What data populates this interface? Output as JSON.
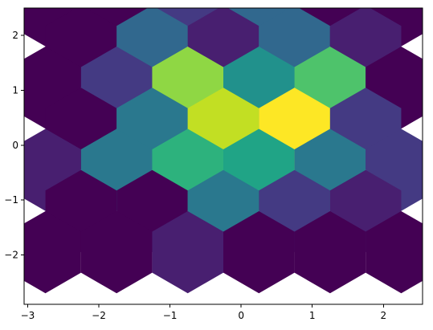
{
  "chart_data": {
    "type": "heatmap",
    "subtype": "hexbin",
    "title": "",
    "xlabel": "",
    "ylabel": "",
    "xlim": [
      -3.05,
      2.55
    ],
    "ylim": [
      -2.9,
      2.5
    ],
    "grid": false,
    "legend": "none",
    "colormap": "viridis",
    "hex_size_y_units": 0.7,
    "x_ticks": [
      {
        "value": -3,
        "label": "−3"
      },
      {
        "value": -2,
        "label": "−2"
      },
      {
        "value": -1,
        "label": "−1"
      },
      {
        "value": 0,
        "label": "0"
      },
      {
        "value": 1,
        "label": "1"
      },
      {
        "value": 2,
        "label": "2"
      }
    ],
    "y_ticks": [
      {
        "value": -2,
        "label": "−2"
      },
      {
        "value": -1,
        "label": "−1"
      },
      {
        "value": 0,
        "label": "0"
      },
      {
        "value": 1,
        "label": "1"
      },
      {
        "value": 2,
        "label": "2"
      }
    ],
    "cells": [
      {
        "x": -2.75,
        "y": 2.55,
        "color": "#440154"
      },
      {
        "x": -1.75,
        "y": 2.55,
        "color": "#440154"
      },
      {
        "x": -0.75,
        "y": 2.55,
        "color": "#443a83"
      },
      {
        "x": 0.25,
        "y": 2.55,
        "color": "#31688e"
      },
      {
        "x": 1.25,
        "y": 2.55,
        "color": "#440154"
      },
      {
        "x": 2.25,
        "y": 2.55,
        "color": "#440154"
      },
      {
        "x": -2.25,
        "y": 1.8,
        "color": "#440154"
      },
      {
        "x": -1.25,
        "y": 1.8,
        "color": "#31688e"
      },
      {
        "x": -0.25,
        "y": 1.8,
        "color": "#481f70"
      },
      {
        "x": 0.75,
        "y": 1.8,
        "color": "#31688e"
      },
      {
        "x": 1.75,
        "y": 1.8,
        "color": "#481f70"
      },
      {
        "x": -2.75,
        "y": 1.05,
        "color": "#440154"
      },
      {
        "x": -1.75,
        "y": 1.05,
        "color": "#443a83"
      },
      {
        "x": -0.75,
        "y": 1.05,
        "color": "#8fd744"
      },
      {
        "x": 0.25,
        "y": 1.05,
        "color": "#21918c"
      },
      {
        "x": 1.25,
        "y": 1.05,
        "color": "#4ec36b"
      },
      {
        "x": 2.25,
        "y": 1.05,
        "color": "#440154"
      },
      {
        "x": -2.25,
        "y": 0.3,
        "color": "#440154"
      },
      {
        "x": -1.25,
        "y": 0.3,
        "color": "#2a788e"
      },
      {
        "x": -0.25,
        "y": 0.3,
        "color": "#c2df23"
      },
      {
        "x": 0.75,
        "y": 0.3,
        "color": "#fde725"
      },
      {
        "x": 1.75,
        "y": 0.3,
        "color": "#443a83"
      },
      {
        "x": -2.75,
        "y": -0.45,
        "color": "#481f70"
      },
      {
        "x": -1.75,
        "y": -0.45,
        "color": "#2a788e"
      },
      {
        "x": -0.75,
        "y": -0.45,
        "color": "#2db27d"
      },
      {
        "x": 0.25,
        "y": -0.45,
        "color": "#20a486"
      },
      {
        "x": 1.25,
        "y": -0.45,
        "color": "#2a788e"
      },
      {
        "x": 2.25,
        "y": -0.45,
        "color": "#443a83"
      },
      {
        "x": -2.25,
        "y": -1.2,
        "color": "#440154"
      },
      {
        "x": -1.25,
        "y": -1.2,
        "color": "#440154"
      },
      {
        "x": -0.25,
        "y": -1.2,
        "color": "#2a788e"
      },
      {
        "x": 0.75,
        "y": -1.2,
        "color": "#443a83"
      },
      {
        "x": 1.75,
        "y": -1.2,
        "color": "#481f70"
      },
      {
        "x": -2.75,
        "y": -1.95,
        "color": "#440154"
      },
      {
        "x": -1.75,
        "y": -1.95,
        "color": "#440154"
      },
      {
        "x": -0.75,
        "y": -1.95,
        "color": "#481f70"
      },
      {
        "x": 0.25,
        "y": -1.95,
        "color": "#440154"
      },
      {
        "x": 1.25,
        "y": -1.95,
        "color": "#440154"
      },
      {
        "x": 2.25,
        "y": -1.95,
        "color": "#440154"
      }
    ]
  }
}
